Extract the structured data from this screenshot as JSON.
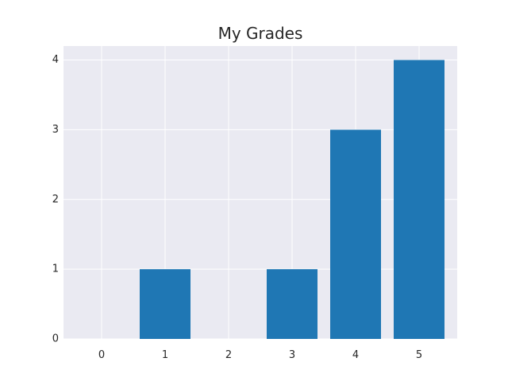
{
  "chart_data": {
    "type": "bar",
    "title": "My Grades",
    "xlabel": "",
    "ylabel": "",
    "categories": [
      "0",
      "1",
      "2",
      "3",
      "4",
      "5"
    ],
    "x": [
      0,
      1,
      2,
      3,
      4,
      5
    ],
    "values": [
      0,
      1,
      0,
      1,
      3,
      4
    ],
    "xticks": [
      "0",
      "1",
      "2",
      "3",
      "4",
      "5"
    ],
    "yticks": [
      "0",
      "1",
      "2",
      "3",
      "4"
    ],
    "ylim": [
      0,
      4
    ],
    "xlim": [
      -0.6,
      5.6
    ],
    "grid": true,
    "legend": "none",
    "colors": {
      "bar": "#1f77b4",
      "plot_background": "#eaeaf2",
      "grid": "#ffffff",
      "text": "#262626"
    }
  }
}
